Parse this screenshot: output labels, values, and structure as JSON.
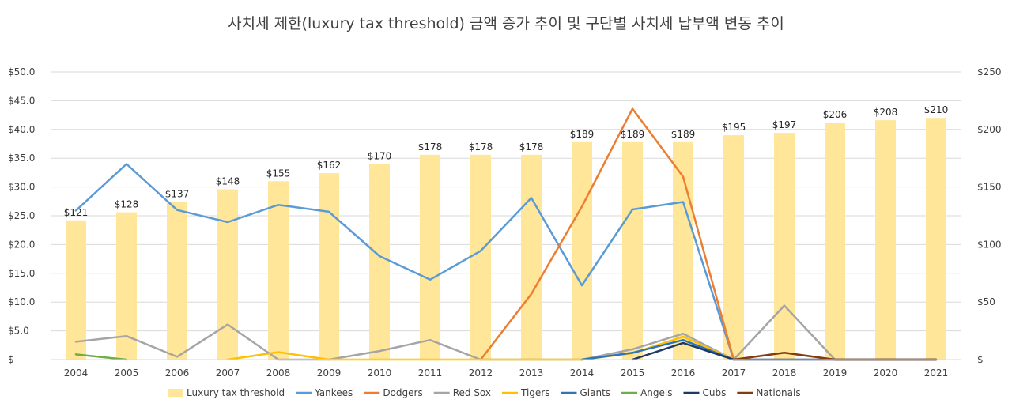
{
  "chart_data": {
    "type": "bar+line",
    "title": "사치세 제한(luxury tax threshold) 금액 증가 추이 및 구단별 사치세 납부액 변동 추이",
    "categories": [
      "2004",
      "2005",
      "2006",
      "2007",
      "2008",
      "2009",
      "2010",
      "2011",
      "2012",
      "2013",
      "2014",
      "2015",
      "2016",
      "2017",
      "2018",
      "2019",
      "2020",
      "2021"
    ],
    "left_axis": {
      "min": 0,
      "max": 50,
      "step": 5,
      "tick_labels": [
        "$-",
        "$5.0",
        "$10.0",
        "$15.0",
        "$20.0",
        "$25.0",
        "$30.0",
        "$35.0",
        "$40.0",
        "$45.0",
        "$50.0"
      ]
    },
    "right_axis": {
      "min": 0,
      "max": 250,
      "step": 50,
      "tick_labels": [
        "$-",
        "$50",
        "$100",
        "$150",
        "$200",
        "$250"
      ]
    },
    "bar_series": {
      "name": "Luxury tax threshold",
      "axis": "right",
      "color": "#FFE699",
      "values": [
        121,
        128,
        137,
        148,
        155,
        162,
        170,
        178,
        178,
        178,
        189,
        189,
        189,
        195,
        197,
        206,
        208,
        210
      ],
      "labels": [
        "$121",
        "$128",
        "$137",
        "$148",
        "$155",
        "$162",
        "$170",
        "$178",
        "$178",
        "$178",
        "$189",
        "$189",
        "$189",
        "$195",
        "$197",
        "$206",
        "$208",
        "$210"
      ]
    },
    "line_series": [
      {
        "name": "Yankees",
        "color": "#5B9BD5",
        "values": [
          25.9,
          34.0,
          26.0,
          23.9,
          26.9,
          25.7,
          18.0,
          13.9,
          18.9,
          28.1,
          12.9,
          26.1,
          27.4,
          0,
          null,
          null,
          null,
          null
        ]
      },
      {
        "name": "Dodgers",
        "color": "#ED7D31",
        "values": [
          null,
          null,
          null,
          null,
          null,
          null,
          null,
          null,
          0,
          11.4,
          26.6,
          43.6,
          31.8,
          0,
          null,
          null,
          null,
          null
        ]
      },
      {
        "name": "Red Sox",
        "color": "#A5A5A5",
        "values": [
          3.1,
          4.1,
          0.5,
          6.1,
          0,
          0,
          1.5,
          3.4,
          0,
          0,
          0,
          1.8,
          4.5,
          0,
          9.4,
          0,
          0,
          0
        ]
      },
      {
        "name": "Tigers",
        "color": "#FFC000",
        "values": [
          null,
          null,
          null,
          0,
          1.3,
          0,
          0,
          0,
          0,
          0,
          0,
          1.1,
          4.0,
          0,
          null,
          null,
          null,
          null
        ]
      },
      {
        "name": "Giants",
        "color": "#2E75B6",
        "values": [
          null,
          null,
          null,
          null,
          null,
          null,
          null,
          null,
          null,
          null,
          0,
          1.2,
          3.4,
          0,
          null,
          null,
          null,
          null
        ]
      },
      {
        "name": "Angels",
        "color": "#70AD47",
        "values": [
          0.9,
          0,
          null,
          null,
          null,
          null,
          null,
          null,
          null,
          null,
          null,
          null,
          null,
          null,
          null,
          null,
          null,
          null
        ]
      },
      {
        "name": "Cubs",
        "color": "#1F3864",
        "values": [
          null,
          null,
          null,
          null,
          null,
          null,
          null,
          null,
          null,
          null,
          null,
          0,
          2.9,
          0,
          0,
          0,
          0,
          0
        ]
      },
      {
        "name": "Nationals",
        "color": "#843C0C",
        "values": [
          null,
          null,
          null,
          null,
          null,
          null,
          null,
          null,
          null,
          null,
          null,
          null,
          null,
          0,
          1.2,
          0,
          0,
          0
        ]
      }
    ],
    "legend_position": "bottom"
  }
}
